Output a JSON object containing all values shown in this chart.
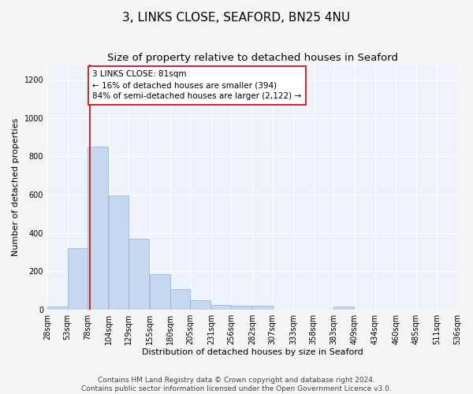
{
  "title": "3, LINKS CLOSE, SEAFORD, BN25 4NU",
  "subtitle": "Size of property relative to detached houses in Seaford",
  "xlabel": "Distribution of detached houses by size in Seaford",
  "ylabel": "Number of detached properties",
  "bar_color": "#c5d8f0",
  "bar_edge_color": "#8ab0d8",
  "background_color": "#eef2fb",
  "fig_background_color": "#f5f5f5",
  "grid_color": "#ffffff",
  "annotation_line_color": "#cc0000",
  "annotation_box_color": "#cc0000",
  "annotation_text": "3 LINKS CLOSE: 81sqm\n← 16% of detached houses are smaller (394)\n84% of semi-detached houses are larger (2,122) →",
  "property_size": 81,
  "bin_edges": [
    28,
    53,
    78,
    104,
    129,
    155,
    180,
    205,
    231,
    256,
    282,
    307,
    333,
    358,
    383,
    409,
    434,
    460,
    485,
    511,
    536
  ],
  "bin_labels": [
    "28sqm",
    "53sqm",
    "78sqm",
    "104sqm",
    "129sqm",
    "155sqm",
    "180sqm",
    "205sqm",
    "231sqm",
    "256sqm",
    "282sqm",
    "307sqm",
    "333sqm",
    "358sqm",
    "383sqm",
    "409sqm",
    "434sqm",
    "460sqm",
    "485sqm",
    "511sqm",
    "536sqm"
  ],
  "bar_heights": [
    15,
    318,
    850,
    597,
    370,
    185,
    105,
    47,
    22,
    18,
    20,
    0,
    0,
    0,
    15,
    0,
    0,
    0,
    0,
    0
  ],
  "ylim": [
    0,
    1280
  ],
  "yticks": [
    0,
    200,
    400,
    600,
    800,
    1000,
    1200
  ],
  "footer1": "Contains HM Land Registry data © Crown copyright and database right 2024.",
  "footer2": "Contains public sector information licensed under the Open Government Licence v3.0.",
  "title_fontsize": 11,
  "subtitle_fontsize": 9.5,
  "axis_label_fontsize": 8,
  "tick_fontsize": 7,
  "annotation_fontsize": 7.5,
  "footer_fontsize": 6.5
}
